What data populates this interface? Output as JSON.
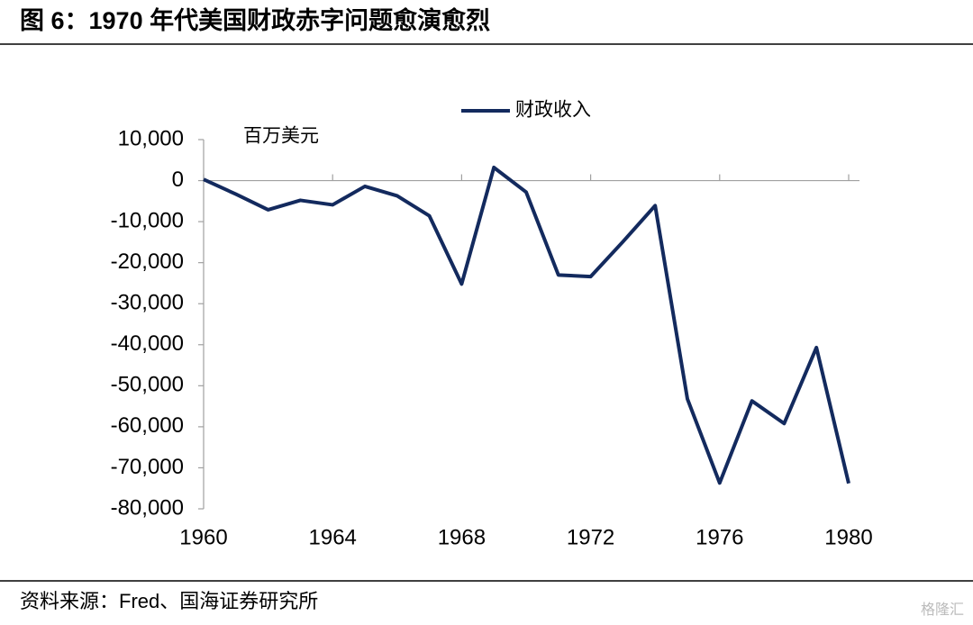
{
  "chart_data": {
    "type": "line",
    "title": "图 6：1970 年代美国财政赤字问题愈演愈烈",
    "y_unit_label": "百万美元",
    "source": "资料来源：Fred、国海证券研究所",
    "watermark": "格隆汇",
    "x": [
      1960,
      1961,
      1962,
      1963,
      1964,
      1965,
      1966,
      1967,
      1968,
      1969,
      1970,
      1971,
      1972,
      1973,
      1974,
      1975,
      1976,
      1977,
      1978,
      1979,
      1980
    ],
    "series": [
      {
        "name": "财政收入",
        "color": "#132a5e",
        "values": [
          300,
          -3300,
          -7100,
          -4800,
          -5900,
          -1400,
          -3700,
          -8600,
          -25200,
          3200,
          -2800,
          -23000,
          -23400,
          -14900,
          -6100,
          -53200,
          -73700,
          -53700,
          -59200,
          -40700,
          -73800
        ]
      }
    ],
    "xlim": [
      1960,
      1980
    ],
    "xticks": [
      1960,
      1964,
      1968,
      1972,
      1976,
      1980
    ],
    "ylim": [
      -80000,
      10000
    ],
    "yticks": [
      {
        "value": 10000,
        "label": "10,000"
      },
      0,
      {
        "value": -10000,
        "label": "-10,000"
      },
      {
        "value": -20000,
        "label": "-20,000"
      },
      {
        "value": -30000,
        "label": "-30,000"
      },
      {
        "value": -40000,
        "label": "-40,000"
      },
      {
        "value": -50000,
        "label": "-50,000"
      },
      {
        "value": -60000,
        "label": "-60,000"
      },
      {
        "value": -70000,
        "label": "-70,000"
      },
      {
        "value": -80000,
        "label": "-80,000"
      }
    ],
    "legend_position": "top"
  }
}
